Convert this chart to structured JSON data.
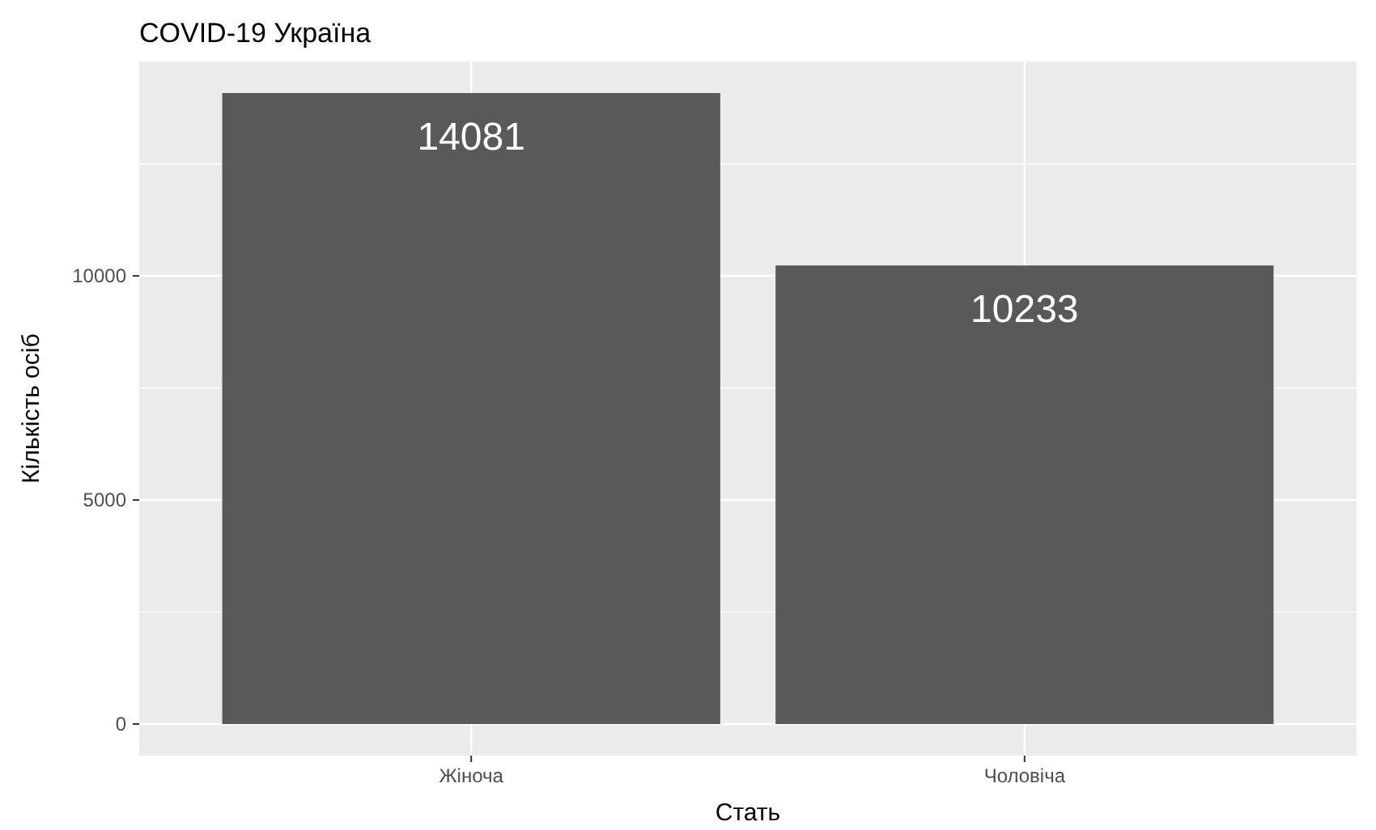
{
  "chart_data": {
    "type": "bar",
    "title": "COVID-19 Україна",
    "xlabel": "Стать",
    "ylabel": "Кількість осіб",
    "categories": [
      "Жіноча",
      "Чоловіча"
    ],
    "values": [
      14081,
      10233
    ],
    "color": "#595959",
    "ylim": [
      -704,
      14785
    ],
    "yticks": [
      0,
      5000,
      10000
    ],
    "grid": true,
    "data_labels": true
  }
}
